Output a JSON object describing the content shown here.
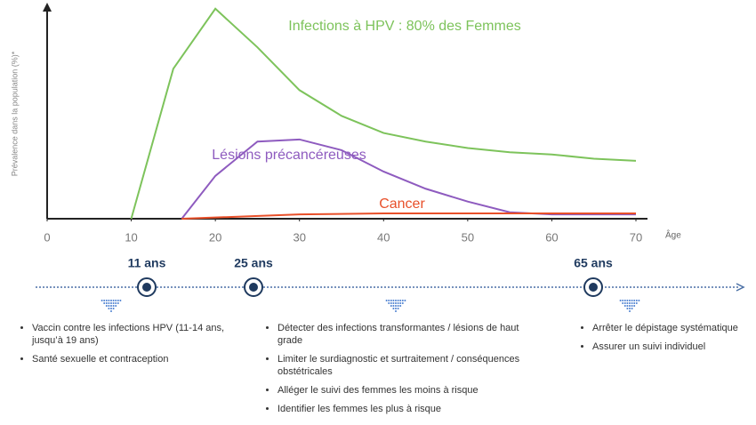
{
  "chart_data": {
    "type": "line",
    "y_label": "Prévalence dans la population (%)*",
    "x_label": "Âge",
    "xlim": [
      0,
      70
    ],
    "xticks": [
      0,
      10,
      20,
      30,
      40,
      50,
      60,
      70
    ],
    "ylim": [
      0,
      100
    ],
    "series": [
      {
        "name": "Infections à HPV : 80% des Femmes",
        "color": "#7dc35b",
        "x": [
          10,
          15,
          20,
          25,
          30,
          35,
          40,
          45,
          50,
          55,
          60,
          65,
          70
        ],
        "values": [
          0,
          70,
          98,
          80,
          60,
          48,
          40,
          36,
          33,
          31,
          30,
          28,
          27
        ]
      },
      {
        "name": "Lésions précancéreuses",
        "color": "#8e5bbf",
        "x": [
          16,
          20,
          25,
          30,
          35,
          40,
          45,
          50,
          55,
          60,
          70
        ],
        "values": [
          0,
          20,
          36,
          37,
          32,
          22,
          14,
          8,
          3,
          2,
          2
        ]
      },
      {
        "name": "Cancer",
        "color": "#e8502a",
        "x": [
          16,
          30,
          40,
          50,
          60,
          70
        ],
        "values": [
          0,
          2,
          2.5,
          2.5,
          2.5,
          2.5
        ]
      }
    ]
  },
  "timeline": {
    "milestones": [
      "11 ans",
      "25 ans",
      "65 ans"
    ],
    "groups": [
      [
        "Vaccin contre les infections HPV  (11-14 ans, jusqu’à 19 ans)",
        "Santé sexuelle et contraception"
      ],
      [
        "Détecter des infections transformantes / lésions de haut grade",
        "Limiter le surdiagnostic et surtraitement / conséquences obstétricales",
        "Alléger le suivi des femmes les moins à risque",
        "Identifier les femmes les plus à risque"
      ],
      [
        "Arrêter le dépistage systématique",
        "Assurer un suivi individuel"
      ]
    ]
  }
}
